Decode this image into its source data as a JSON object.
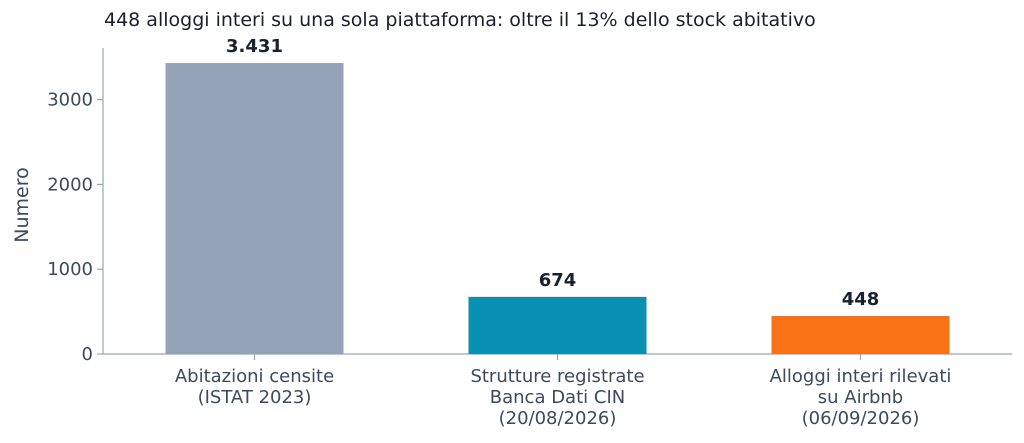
{
  "chart_data": {
    "type": "bar",
    "title": "448 alloggi interi su una sola piattaforma: oltre il 13% dello stock abitativo",
    "ylabel": "Numero",
    "xlabel": "",
    "ylim": [
      0,
      3600
    ],
    "yticks": [
      0,
      1000,
      2000,
      3000
    ],
    "grid": false,
    "categories": [
      [
        "Abitazioni censite",
        "(ISTAT 2023)"
      ],
      [
        "Strutture registrate",
        "Banca Dati CIN",
        "(20/08/2026)"
      ],
      [
        "Alloggi interi rilevati",
        "su Airbnb",
        "(06/09/2026)"
      ]
    ],
    "values": [
      3431,
      674,
      448
    ],
    "value_labels": [
      "3.431",
      "674",
      "448"
    ],
    "colors": [
      "#94a3b8",
      "#0891b2",
      "#f97316"
    ]
  }
}
